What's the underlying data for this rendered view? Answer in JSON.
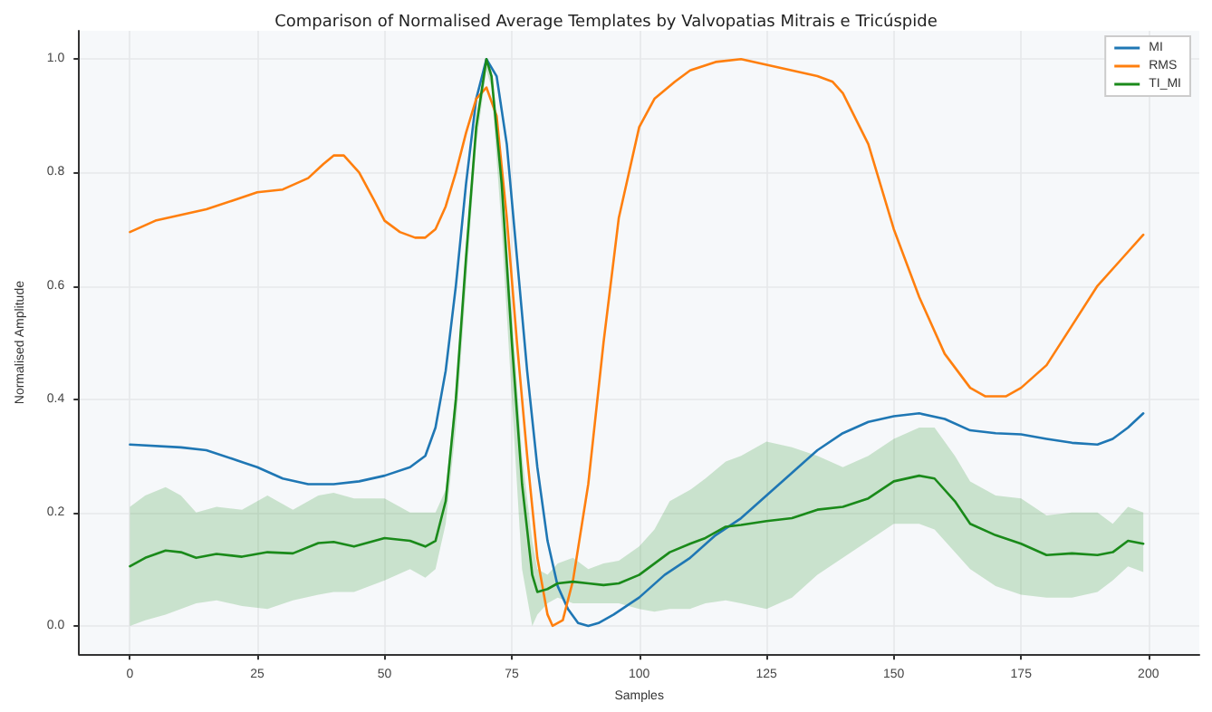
{
  "chart_data": {
    "type": "line",
    "title": "Comparison of Normalised Average Templates by Valvopatias Mitrais e Tricúspide",
    "xlabel": "Samples",
    "ylabel": "Normalised Amplitude",
    "xlim": [
      -10,
      210
    ],
    "xticks": [
      0,
      25,
      50,
      75,
      100,
      125,
      150,
      175,
      200
    ],
    "ylim": [
      -0.05,
      1.05
    ],
    "yticks": [
      {
        "value": 0,
        "label": "0.0"
      },
      {
        "value": 0.2,
        "label": "0.2"
      },
      {
        "value": 0.4,
        "label": "0.4"
      },
      {
        "value": 0.6,
        "label": "0.6"
      },
      {
        "value": 0.8,
        "label": "0.8"
      },
      {
        "value": 1,
        "label": "1.0"
      }
    ],
    "grid": true,
    "legend": "top right",
    "series": [
      {
        "name": "MI",
        "color": "#1f77b4",
        "x": [
          0,
          10,
          15,
          20,
          25,
          30,
          35,
          40,
          45,
          50,
          55,
          58,
          60,
          62,
          64,
          66,
          68,
          70,
          72,
          74,
          76,
          78,
          80,
          82,
          84,
          86,
          88,
          90,
          92,
          95,
          100,
          105,
          110,
          115,
          120,
          125,
          130,
          135,
          140,
          145,
          150,
          155,
          160,
          165,
          170,
          175,
          180,
          185,
          190,
          193,
          196,
          199
        ],
        "values": [
          0.32,
          0.315,
          0.31,
          0.295,
          0.28,
          0.26,
          0.25,
          0.25,
          0.255,
          0.265,
          0.28,
          0.3,
          0.35,
          0.45,
          0.6,
          0.78,
          0.93,
          1.0,
          0.97,
          0.85,
          0.65,
          0.45,
          0.28,
          0.15,
          0.07,
          0.03,
          0.005,
          0.0,
          0.005,
          0.02,
          0.05,
          0.09,
          0.12,
          0.16,
          0.19,
          0.23,
          0.27,
          0.31,
          0.34,
          0.36,
          0.37,
          0.375,
          0.365,
          0.345,
          0.34,
          0.338,
          0.33,
          0.323,
          0.32,
          0.33,
          0.35,
          0.375
        ]
      },
      {
        "name": "RMS",
        "color": "#ff7f0e",
        "x": [
          0,
          5,
          10,
          15,
          20,
          25,
          30,
          35,
          38,
          40,
          42,
          45,
          48,
          50,
          53,
          56,
          58,
          60,
          62,
          64,
          66,
          68,
          70,
          72,
          74,
          76,
          78,
          80,
          82,
          83,
          85,
          87,
          90,
          93,
          96,
          100,
          103,
          107,
          110,
          115,
          120,
          125,
          130,
          135,
          138,
          140,
          145,
          150,
          155,
          160,
          165,
          168,
          172,
          175,
          180,
          185,
          190,
          195,
          199
        ],
        "values": [
          0.695,
          0.715,
          0.725,
          0.735,
          0.75,
          0.765,
          0.77,
          0.79,
          0.815,
          0.83,
          0.83,
          0.8,
          0.75,
          0.715,
          0.695,
          0.685,
          0.685,
          0.7,
          0.74,
          0.8,
          0.87,
          0.93,
          0.95,
          0.9,
          0.72,
          0.5,
          0.3,
          0.12,
          0.02,
          0.0,
          0.01,
          0.08,
          0.25,
          0.5,
          0.72,
          0.88,
          0.93,
          0.96,
          0.98,
          0.995,
          1.0,
          0.99,
          0.98,
          0.97,
          0.96,
          0.94,
          0.85,
          0.7,
          0.58,
          0.48,
          0.42,
          0.405,
          0.405,
          0.42,
          0.46,
          0.53,
          0.6,
          0.65,
          0.69
        ]
      },
      {
        "name": "TI_MI",
        "color": "#1a8a1a",
        "x": [
          0,
          3,
          7,
          10,
          13,
          17,
          22,
          27,
          32,
          37,
          40,
          44,
          50,
          55,
          58,
          60,
          62,
          64,
          66,
          68,
          70,
          71,
          73,
          75,
          77,
          79,
          80,
          82,
          84,
          87,
          90,
          93,
          96,
          100,
          103,
          106,
          110,
          113,
          117,
          120,
          125,
          130,
          135,
          140,
          145,
          150,
          155,
          158,
          162,
          165,
          170,
          175,
          180,
          185,
          190,
          193,
          196,
          199
        ],
        "values": [
          0.105,
          0.12,
          0.133,
          0.13,
          0.12,
          0.127,
          0.122,
          0.13,
          0.128,
          0.146,
          0.148,
          0.14,
          0.155,
          0.15,
          0.14,
          0.15,
          0.22,
          0.4,
          0.65,
          0.88,
          1.0,
          0.97,
          0.78,
          0.5,
          0.25,
          0.09,
          0.06,
          0.065,
          0.075,
          0.078,
          0.075,
          0.072,
          0.075,
          0.09,
          0.11,
          0.13,
          0.145,
          0.155,
          0.175,
          0.178,
          0.185,
          0.19,
          0.205,
          0.21,
          0.225,
          0.255,
          0.265,
          0.26,
          0.22,
          0.18,
          0.16,
          0.145,
          0.125,
          0.128,
          0.125,
          0.13,
          0.15,
          0.145
        ],
        "upper": [
          0.21,
          0.23,
          0.245,
          0.23,
          0.2,
          0.21,
          0.205,
          0.23,
          0.205,
          0.23,
          0.235,
          0.225,
          0.225,
          0.2,
          0.2,
          0.2,
          0.24,
          0.42,
          0.67,
          0.9,
          1.0,
          0.98,
          0.8,
          0.55,
          0.3,
          0.15,
          0.1,
          0.09,
          0.11,
          0.12,
          0.1,
          0.11,
          0.115,
          0.14,
          0.17,
          0.22,
          0.24,
          0.26,
          0.29,
          0.3,
          0.325,
          0.315,
          0.3,
          0.28,
          0.3,
          0.33,
          0.35,
          0.35,
          0.3,
          0.255,
          0.23,
          0.225,
          0.195,
          0.2,
          0.2,
          0.18,
          0.21,
          0.2
        ],
        "lower": [
          0.0,
          0.01,
          0.02,
          0.03,
          0.04,
          0.045,
          0.035,
          0.03,
          0.045,
          0.055,
          0.06,
          0.06,
          0.08,
          0.1,
          0.085,
          0.1,
          0.18,
          0.35,
          0.6,
          0.85,
          0.98,
          0.95,
          0.7,
          0.4,
          0.1,
          0.0,
          0.02,
          0.04,
          0.05,
          0.04,
          0.04,
          0.04,
          0.04,
          0.03,
          0.025,
          0.03,
          0.03,
          0.04,
          0.045,
          0.04,
          0.03,
          0.05,
          0.09,
          0.12,
          0.15,
          0.18,
          0.18,
          0.17,
          0.13,
          0.1,
          0.07,
          0.055,
          0.05,
          0.05,
          0.06,
          0.08,
          0.105,
          0.095
        ]
      }
    ]
  }
}
